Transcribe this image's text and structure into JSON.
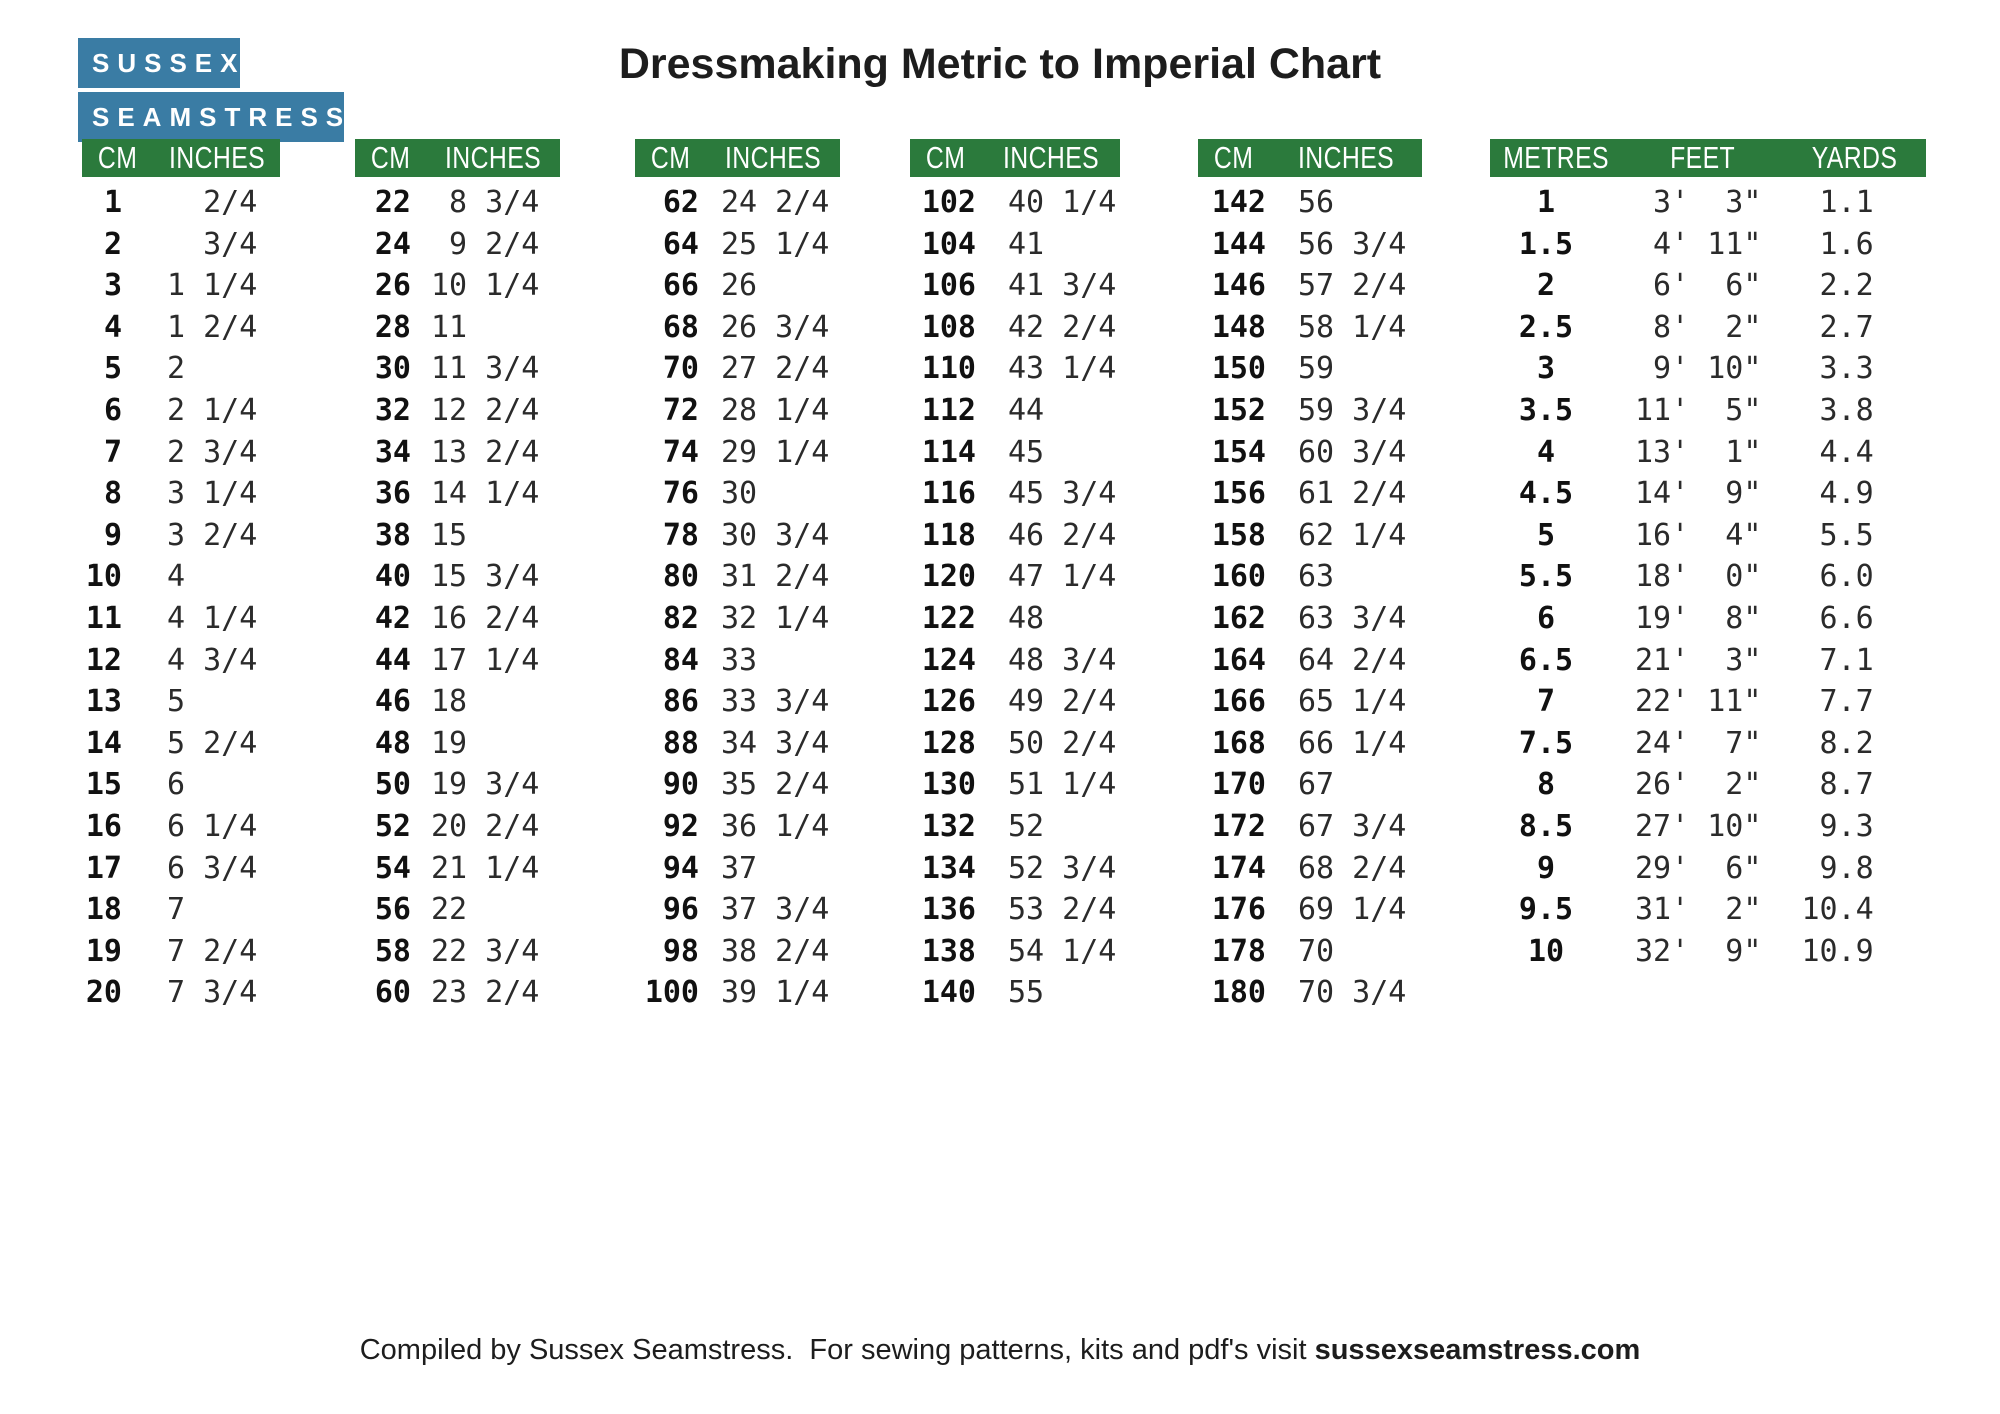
{
  "logo": {
    "line1": "SUSSEX",
    "line2": "SEAMSTRESS",
    "bg_color": "#3A7CA4"
  },
  "title": "Dressmaking Metric to Imperial Chart",
  "colors": {
    "header_green": "#2B7A3C",
    "logo_blue": "#3A7CA4"
  },
  "tables": [
    {
      "kind": "cm",
      "headers": [
        "CM",
        "INCHES"
      ],
      "rows": [
        [
          "1",
          "  2/4"
        ],
        [
          "2",
          "  3/4"
        ],
        [
          "3",
          "1 1/4"
        ],
        [
          "4",
          "1 2/4"
        ],
        [
          "5",
          "2"
        ],
        [
          "6",
          "2 1/4"
        ],
        [
          "7",
          "2 3/4"
        ],
        [
          "8",
          "3 1/4"
        ],
        [
          "9",
          "3 2/4"
        ],
        [
          "10",
          "4"
        ],
        [
          "11",
          "4 1/4"
        ],
        [
          "12",
          "4 3/4"
        ],
        [
          "13",
          "5"
        ],
        [
          "14",
          "5 2/4"
        ],
        [
          "15",
          "6"
        ],
        [
          "16",
          "6 1/4"
        ],
        [
          "17",
          "6 3/4"
        ],
        [
          "18",
          "7"
        ],
        [
          "19",
          "7 2/4"
        ],
        [
          "20",
          "7 3/4"
        ]
      ]
    },
    {
      "kind": "cm",
      "headers": [
        "CM",
        "INCHES"
      ],
      "rows": [
        [
          "22",
          " 8 3/4"
        ],
        [
          "24",
          " 9 2/4"
        ],
        [
          "26",
          "10 1/4"
        ],
        [
          "28",
          "11"
        ],
        [
          "30",
          "11 3/4"
        ],
        [
          "32",
          "12 2/4"
        ],
        [
          "34",
          "13 2/4"
        ],
        [
          "36",
          "14 1/4"
        ],
        [
          "38",
          "15"
        ],
        [
          "40",
          "15 3/4"
        ],
        [
          "42",
          "16 2/4"
        ],
        [
          "44",
          "17 1/4"
        ],
        [
          "46",
          "18"
        ],
        [
          "48",
          "19"
        ],
        [
          "50",
          "19 3/4"
        ],
        [
          "52",
          "20 2/4"
        ],
        [
          "54",
          "21 1/4"
        ],
        [
          "56",
          "22"
        ],
        [
          "58",
          "22 3/4"
        ],
        [
          "60",
          "23 2/4"
        ]
      ]
    },
    {
      "kind": "cm",
      "headers": [
        "CM",
        "INCHES"
      ],
      "rows": [
        [
          "62",
          "24 2/4"
        ],
        [
          "64",
          "25 1/4"
        ],
        [
          "66",
          "26"
        ],
        [
          "68",
          "26 3/4"
        ],
        [
          "70",
          "27 2/4"
        ],
        [
          "72",
          "28 1/4"
        ],
        [
          "74",
          "29 1/4"
        ],
        [
          "76",
          "30"
        ],
        [
          "78",
          "30 3/4"
        ],
        [
          "80",
          "31 2/4"
        ],
        [
          "82",
          "32 1/4"
        ],
        [
          "84",
          "33"
        ],
        [
          "86",
          "33 3/4"
        ],
        [
          "88",
          "34 3/4"
        ],
        [
          "90",
          "35 2/4"
        ],
        [
          "92",
          "36 1/4"
        ],
        [
          "94",
          "37"
        ],
        [
          "96",
          "37 3/4"
        ],
        [
          "98",
          "38 2/4"
        ],
        [
          "100",
          "39 1/4"
        ]
      ]
    },
    {
      "kind": "cm",
      "headers": [
        "CM",
        "INCHES"
      ],
      "rows": [
        [
          "102",
          "40 1/4"
        ],
        [
          "104",
          "41"
        ],
        [
          "106",
          "41 3/4"
        ],
        [
          "108",
          "42 2/4"
        ],
        [
          "110",
          "43 1/4"
        ],
        [
          "112",
          "44"
        ],
        [
          "114",
          "45"
        ],
        [
          "116",
          "45 3/4"
        ],
        [
          "118",
          "46 2/4"
        ],
        [
          "120",
          "47 1/4"
        ],
        [
          "122",
          "48"
        ],
        [
          "124",
          "48 3/4"
        ],
        [
          "126",
          "49 2/4"
        ],
        [
          "128",
          "50 2/4"
        ],
        [
          "130",
          "51 1/4"
        ],
        [
          "132",
          "52"
        ],
        [
          "134",
          "52 3/4"
        ],
        [
          "136",
          "53 2/4"
        ],
        [
          "138",
          "54 1/4"
        ],
        [
          "140",
          "55"
        ]
      ]
    },
    {
      "kind": "cm",
      "headers": [
        "CM",
        "INCHES"
      ],
      "rows": [
        [
          "142",
          "56"
        ],
        [
          "144",
          "56 3/4"
        ],
        [
          "146",
          "57 2/4"
        ],
        [
          "148",
          "58 1/4"
        ],
        [
          "150",
          "59"
        ],
        [
          "152",
          "59 3/4"
        ],
        [
          "154",
          "60 3/4"
        ],
        [
          "156",
          "61 2/4"
        ],
        [
          "158",
          "62 1/4"
        ],
        [
          "160",
          "63"
        ],
        [
          "162",
          "63 3/4"
        ],
        [
          "164",
          "64 2/4"
        ],
        [
          "166",
          "65 1/4"
        ],
        [
          "168",
          "66 1/4"
        ],
        [
          "170",
          "67"
        ],
        [
          "172",
          "67 3/4"
        ],
        [
          "174",
          "68 2/4"
        ],
        [
          "176",
          "69 1/4"
        ],
        [
          "178",
          "70"
        ],
        [
          "180",
          "70 3/4"
        ]
      ]
    },
    {
      "kind": "metres",
      "headers": [
        "METRES",
        "FEET",
        "YARDS"
      ],
      "rows": [
        [
          "1",
          " 3'  3\"",
          " 1.1"
        ],
        [
          "1.5",
          " 4' 11\"",
          " 1.6"
        ],
        [
          "2",
          " 6'  6\"",
          " 2.2"
        ],
        [
          "2.5",
          " 8'  2\"",
          " 2.7"
        ],
        [
          "3",
          " 9' 10\"",
          " 3.3"
        ],
        [
          "3.5",
          "11'  5\"",
          " 3.8"
        ],
        [
          "4",
          "13'  1\"",
          " 4.4"
        ],
        [
          "4.5",
          "14'  9\"",
          " 4.9"
        ],
        [
          "5",
          "16'  4\"",
          " 5.5"
        ],
        [
          "5.5",
          "18'  0\"",
          " 6.0"
        ],
        [
          "6",
          "19'  8\"",
          " 6.6"
        ],
        [
          "6.5",
          "21'  3\"",
          " 7.1"
        ],
        [
          "7",
          "22' 11\"",
          " 7.7"
        ],
        [
          "7.5",
          "24'  7\"",
          " 8.2"
        ],
        [
          "8",
          "26'  2\"",
          " 8.7"
        ],
        [
          "8.5",
          "27' 10\"",
          " 9.3"
        ],
        [
          "9",
          "29'  6\"",
          " 9.8"
        ],
        [
          "9.5",
          "31'  2\"",
          "10.4"
        ],
        [
          "10",
          "32'  9\"",
          "10.9"
        ]
      ]
    }
  ],
  "footer": {
    "text": "Compiled by Sussex Seamstress.  For sewing patterns, kits and pdf's visit ",
    "website": "sussexseamstress.com"
  }
}
